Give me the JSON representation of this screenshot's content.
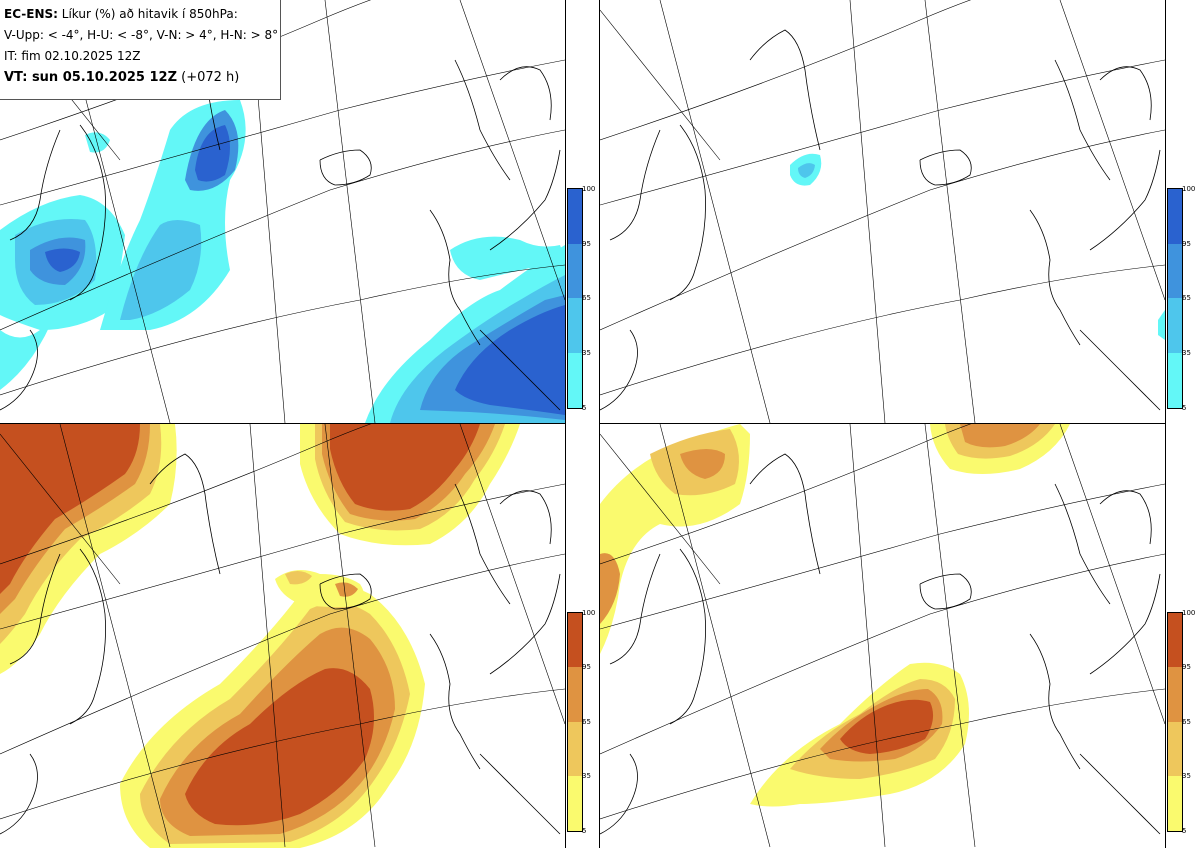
{
  "header": {
    "model": "EC-ENS:",
    "title": " Líkur (%) að hitavik í 850hPa:",
    "legend_line": "V-Upp: < -4°, H-U: < -8°, V-N: > 4°, H-N: > 8°",
    "init_time": "IT: fim 02.10.2025 12Z",
    "valid_label": "VT: sun 05.10.2025 12Z",
    "lead_time": " (+072 h)"
  },
  "colorbar": {
    "ticks": [
      "100",
      "95",
      "65",
      "35",
      "5"
    ]
  },
  "colors": {
    "cold_5": "#63f7f7",
    "cold_35": "#4ec6ec",
    "cold_65": "#3f93dd",
    "cold_95": "#2a62cf",
    "warm_5": "#fafa6e",
    "warm_35": "#eec75c",
    "warm_65": "#df9341",
    "warm_95": "#c5501f"
  }
}
